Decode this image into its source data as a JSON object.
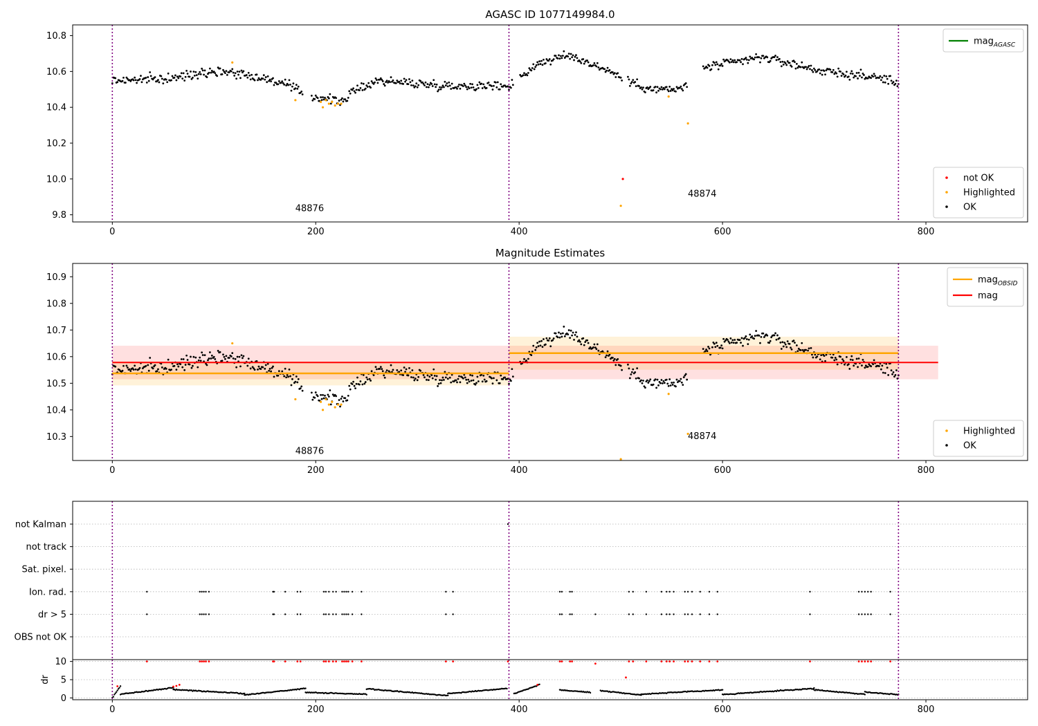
{
  "chart_data": [
    {
      "type": "scatter",
      "title": "AGASC ID 1077149984.0",
      "xlim": [
        -39,
        900
      ],
      "ylim": [
        9.76,
        10.86
      ],
      "xticks": [
        0,
        200,
        400,
        600,
        800
      ],
      "yticks": [
        9.8,
        10.0,
        10.2,
        10.4,
        10.6,
        10.8
      ],
      "ytick_labels": [
        "9.8",
        "10.0",
        "10.2",
        "10.4",
        "10.6",
        "10.8"
      ],
      "obsid_boundaries": [
        0,
        390,
        773
      ],
      "obsid_labels": [
        {
          "text": "48876",
          "x": 194,
          "y": 9.82
        },
        {
          "text": "48874",
          "x": 580,
          "y": 9.9
        }
      ],
      "legend_lines": [
        {
          "label": "mag",
          "sub": "AGASC",
          "color": "#008000"
        }
      ],
      "legend_points": [
        {
          "label": "not OK",
          "color": "#ff0000"
        },
        {
          "label": "Highlighted",
          "color": "#ffa500"
        },
        {
          "label": "OK",
          "color": "#000000"
        }
      ],
      "legend_lines_position": "top-right",
      "legend_points_position": "bottom-right",
      "ok_trend": [
        [
          0,
          10.55
        ],
        [
          60,
          10.56
        ],
        [
          90,
          10.6
        ],
        [
          115,
          10.6
        ],
        [
          150,
          10.56
        ],
        [
          170,
          10.53
        ],
        [
          180,
          10.5
        ],
        [
          195,
          10.46
        ],
        [
          210,
          10.45
        ],
        [
          225,
          10.43
        ],
        [
          235,
          10.48
        ],
        [
          260,
          10.55
        ],
        [
          330,
          10.52
        ],
        [
          390,
          10.52
        ],
        [
          420,
          10.65
        ],
        [
          450,
          10.69
        ],
        [
          490,
          10.6
        ],
        [
          505,
          10.55
        ],
        [
          530,
          10.5
        ],
        [
          560,
          10.5
        ],
        [
          580,
          10.62
        ],
        [
          640,
          10.68
        ],
        [
          700,
          10.6
        ],
        [
          760,
          10.56
        ],
        [
          773,
          10.53
        ]
      ],
      "ok_scatter": 0.025,
      "ok_gaps": [
        [
          188,
          195
        ],
        [
          395,
          400
        ],
        [
          502,
          506
        ],
        [
          566,
          580
        ]
      ],
      "highlighted": [
        [
          118,
          10.65
        ],
        [
          180,
          10.44
        ],
        [
          205,
          10.43
        ],
        [
          207,
          10.4
        ],
        [
          210,
          10.44
        ],
        [
          213,
          10.42
        ],
        [
          216,
          10.43
        ],
        [
          219,
          10.41
        ],
        [
          222,
          10.42
        ],
        [
          225,
          10.42
        ],
        [
          547,
          10.46
        ],
        [
          566,
          10.31
        ],
        [
          500,
          9.85
        ]
      ],
      "not_ok": [
        [
          502,
          10.0
        ]
      ]
    },
    {
      "type": "scatter",
      "title": "Magnitude Estimates",
      "xlim": [
        -39,
        900
      ],
      "ylim": [
        10.21,
        10.95
      ],
      "xticks": [
        0,
        200,
        400,
        600,
        800
      ],
      "yticks": [
        10.3,
        10.4,
        10.5,
        10.6,
        10.7,
        10.8,
        10.9
      ],
      "ytick_labels": [
        "10.3",
        "10.4",
        "10.5",
        "10.6",
        "10.7",
        "10.8",
        "10.9"
      ],
      "obsid_boundaries": [
        0,
        390,
        773
      ],
      "obsid_labels": [
        {
          "text": "48876",
          "x": 194,
          "y": 10.235
        },
        {
          "text": "48874",
          "x": 580,
          "y": 10.29
        }
      ],
      "mag": {
        "value": 10.578,
        "err": 0.063,
        "x_range": [
          0,
          812
        ],
        "color": "#ff0000"
      },
      "mag_obsid": [
        {
          "value": 10.537,
          "err": 0.045,
          "x_range": [
            0,
            390
          ]
        },
        {
          "value": 10.613,
          "err": 0.062,
          "x_range": [
            390,
            773
          ]
        }
      ],
      "legend_lines": [
        {
          "label": "mag",
          "sub": "OBSID",
          "color": "#ffa500"
        },
        {
          "label": "mag",
          "sub": "",
          "color": "#ff0000"
        }
      ],
      "legend_points": [
        {
          "label": "Highlighted",
          "color": "#ffa500"
        },
        {
          "label": "OK",
          "color": "#000000"
        }
      ],
      "legend_lines_position": "top-right",
      "legend_points_position": "bottom-right",
      "ok_trend": [
        [
          0,
          10.55
        ],
        [
          60,
          10.56
        ],
        [
          90,
          10.6
        ],
        [
          115,
          10.6
        ],
        [
          150,
          10.56
        ],
        [
          170,
          10.53
        ],
        [
          180,
          10.5
        ],
        [
          195,
          10.46
        ],
        [
          210,
          10.45
        ],
        [
          225,
          10.43
        ],
        [
          235,
          10.48
        ],
        [
          260,
          10.55
        ],
        [
          330,
          10.52
        ],
        [
          390,
          10.52
        ],
        [
          420,
          10.65
        ],
        [
          450,
          10.69
        ],
        [
          490,
          10.6
        ],
        [
          505,
          10.55
        ],
        [
          530,
          10.5
        ],
        [
          560,
          10.5
        ],
        [
          580,
          10.62
        ],
        [
          640,
          10.68
        ],
        [
          700,
          10.6
        ],
        [
          760,
          10.56
        ],
        [
          773,
          10.53
        ]
      ],
      "ok_scatter": 0.025,
      "ok_gaps": [
        [
          188,
          195
        ],
        [
          395,
          400
        ],
        [
          502,
          506
        ],
        [
          566,
          580
        ]
      ],
      "highlighted": [
        [
          118,
          10.65
        ],
        [
          180,
          10.44
        ],
        [
          205,
          10.43
        ],
        [
          207,
          10.4
        ],
        [
          210,
          10.44
        ],
        [
          213,
          10.42
        ],
        [
          216,
          10.43
        ],
        [
          219,
          10.41
        ],
        [
          222,
          10.42
        ],
        [
          225,
          10.42
        ],
        [
          547,
          10.46
        ],
        [
          566,
          10.31
        ],
        [
          500,
          10.215
        ]
      ]
    },
    {
      "type": "event_flags",
      "xlim": [
        -39,
        900
      ],
      "categories": [
        "not Kalman",
        "not track",
        "Sat. pixel.",
        "Ion. rad.",
        "dr > 5",
        "OBS not OK"
      ],
      "flags": {
        "not Kalman": [
          389
        ],
        "not track": [],
        "Sat. pixel.": [],
        "Ion. rad.": [
          34,
          86,
          88,
          90,
          92,
          95,
          158,
          159,
          170,
          182,
          185,
          208,
          210,
          213,
          217,
          220,
          226,
          228,
          230,
          232,
          236,
          245,
          328,
          335,
          440,
          442,
          450,
          452,
          508,
          512,
          525,
          540,
          545,
          548,
          552,
          563,
          566,
          570,
          578,
          587,
          595,
          686,
          734,
          737,
          740,
          743,
          746,
          765
        ],
        "dr > 5": [
          34,
          86,
          88,
          90,
          92,
          95,
          158,
          159,
          170,
          182,
          185,
          208,
          210,
          213,
          217,
          220,
          226,
          228,
          230,
          232,
          236,
          245,
          328,
          335,
          440,
          442,
          450,
          452,
          475,
          508,
          512,
          525,
          540,
          545,
          548,
          552,
          563,
          566,
          570,
          578,
          587,
          595,
          686,
          734,
          737,
          740,
          743,
          746,
          765
        ],
        "OBS not OK": []
      }
    },
    {
      "type": "scatter",
      "ylabel": "dr",
      "xlim": [
        -39,
        900
      ],
      "ylim": [
        -0.5,
        10.5
      ],
      "xticks": [
        0,
        200,
        400,
        600,
        800
      ],
      "yticks": [
        0,
        5,
        10
      ],
      "ytick_labels": [
        "0",
        "5",
        "10"
      ],
      "obsid_boundaries": [
        0,
        390,
        773
      ],
      "baseline_segments": [
        {
          "x_range": [
            0,
            8
          ],
          "from": 0.0,
          "to": 3.2
        },
        {
          "x_range": [
            8,
            60
          ],
          "from": 1.0,
          "to": 2.8
        },
        {
          "x_range": [
            60,
            130
          ],
          "from": 2.3,
          "to": 1.2
        },
        {
          "x_range": [
            130,
            190
          ],
          "from": 0.8,
          "to": 2.6
        },
        {
          "x_range": [
            190,
            250
          ],
          "from": 1.5,
          "to": 1.0
        },
        {
          "x_range": [
            250,
            330
          ],
          "from": 2.5,
          "to": 0.6
        },
        {
          "x_range": [
            330,
            388
          ],
          "from": 1.2,
          "to": 2.6
        },
        {
          "x_range": [
            395,
            420
          ],
          "from": 1.2,
          "to": 3.6
        },
        {
          "x_range": [
            440,
            470
          ],
          "from": 2.2,
          "to": 1.5
        },
        {
          "x_range": [
            480,
            520
          ],
          "from": 2.0,
          "to": 0.8
        },
        {
          "x_range": [
            520,
            600
          ],
          "from": 1.0,
          "to": 2.2
        },
        {
          "x_range": [
            600,
            690
          ],
          "from": 0.9,
          "to": 2.6
        },
        {
          "x_range": [
            690,
            740
          ],
          "from": 2.2,
          "to": 1.0
        },
        {
          "x_range": [
            740,
            773
          ],
          "from": 1.6,
          "to": 0.9
        }
      ],
      "red_high": [
        34,
        86,
        88,
        90,
        92,
        95,
        158,
        159,
        170,
        182,
        185,
        208,
        210,
        213,
        217,
        220,
        226,
        228,
        230,
        232,
        236,
        245,
        328,
        335,
        389,
        440,
        442,
        450,
        452,
        508,
        512,
        525,
        540,
        545,
        548,
        552,
        563,
        566,
        570,
        578,
        587,
        595,
        686,
        734,
        737,
        740,
        743,
        746,
        765
      ],
      "red_other": [
        [
          5,
          3.2
        ],
        [
          60,
          3.1
        ],
        [
          63,
          3.3
        ],
        [
          66,
          3.6
        ],
        [
          418,
          3.6
        ],
        [
          475,
          9.4
        ],
        [
          505,
          5.6
        ]
      ]
    }
  ]
}
